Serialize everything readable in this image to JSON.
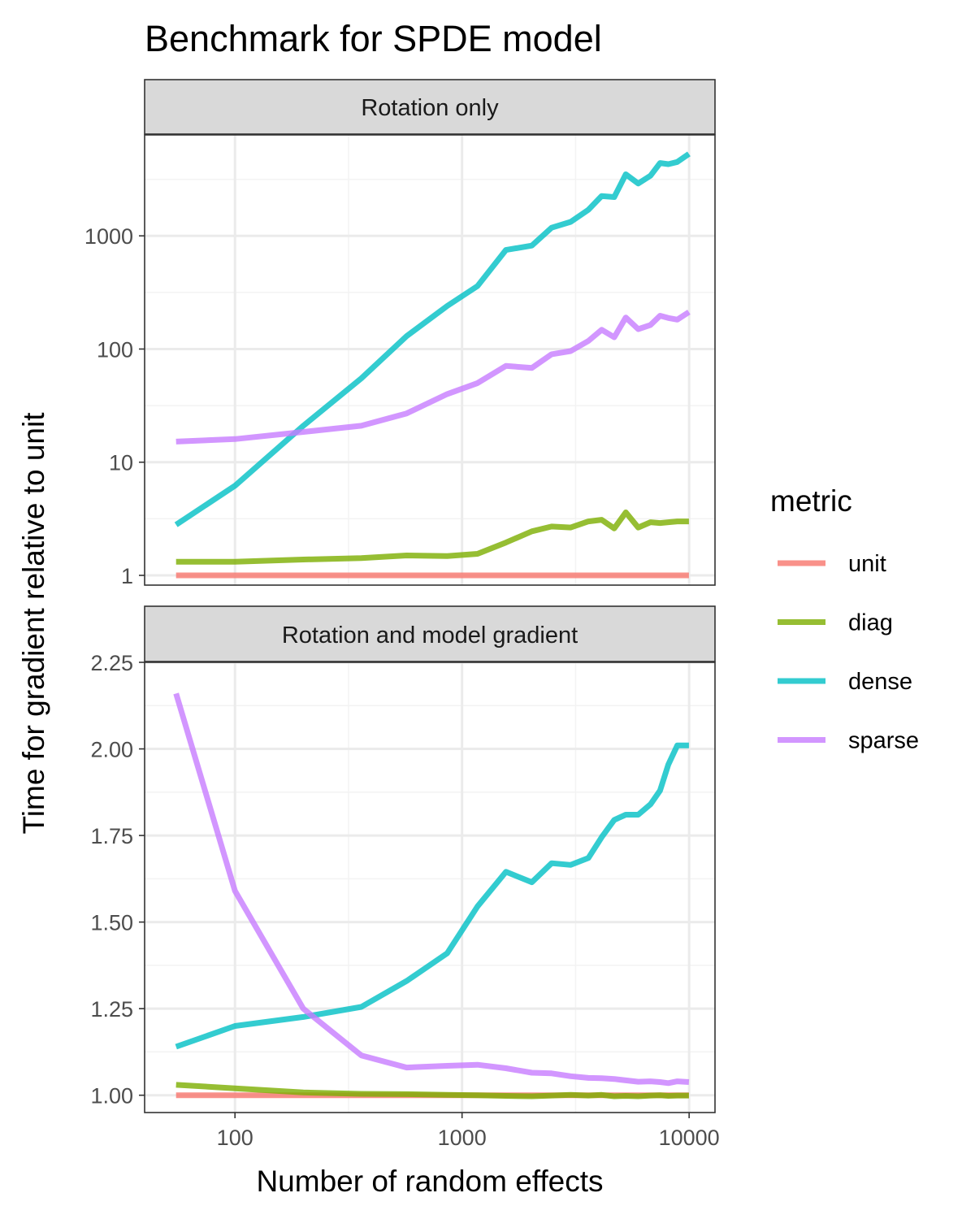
{
  "chart_data": {
    "type": "line",
    "title": "Benchmark for SPDE model",
    "xlabel": "Number of random effects",
    "ylabel": "Time for gradient relative to unit",
    "x_scale": "log10",
    "x_ticks": [
      100,
      1000,
      10000
    ],
    "x_tick_labels": [
      "100",
      "1000",
      "10000"
    ],
    "xlim": [
      40,
      13000
    ],
    "grid": true,
    "legend": {
      "title": "metric",
      "position": "right",
      "entries": [
        "unit",
        "diag",
        "dense",
        "sparse"
      ]
    },
    "colors": {
      "unit": "#F8766D",
      "diag": "#7CAE00",
      "dense": "#00BFC4",
      "sparse": "#C77CFF"
    },
    "x": [
      55,
      100,
      200,
      360,
      570,
      860,
      1170,
      1560,
      2030,
      2480,
      3010,
      3600,
      4120,
      4680,
      5260,
      5970,
      6760,
      7450,
      8100,
      8870,
      9980
    ],
    "panels": [
      {
        "strip": "Rotation only",
        "y_scale": "log10",
        "y_ticks": [
          1,
          10,
          100,
          1000
        ],
        "y_tick_labels": [
          "1",
          "10",
          "100",
          "1000"
        ],
        "ylim": [
          0.82,
          7800
        ],
        "series": [
          {
            "name": "unit",
            "values": [
              1,
              1,
              1,
              1,
              1,
              1,
              1,
              1,
              1,
              1,
              1,
              1,
              1,
              1,
              1,
              1,
              1,
              1,
              1,
              1,
              1
            ]
          },
          {
            "name": "diag",
            "values": [
              1.32,
              1.32,
              1.38,
              1.42,
              1.5,
              1.48,
              1.55,
              1.95,
              2.45,
              2.7,
              2.65,
              3.0,
              3.1,
              2.6,
              3.6,
              2.65,
              2.95,
              2.9,
              2.95,
              3.0,
              3.0
            ]
          },
          {
            "name": "dense",
            "values": [
              2.8,
              6.2,
              21,
              55,
              130,
              240,
              360,
              750,
              820,
              1180,
              1330,
              1700,
              2250,
              2200,
              3500,
              2900,
              3400,
              4400,
              4300,
              4500,
              5300
            ]
          },
          {
            "name": "sparse",
            "values": [
              15.2,
              16,
              18.5,
              21,
              27,
              40,
              50,
              71,
              68,
              90,
              96,
              118,
              148,
              127,
              190,
              150,
              163,
              197,
              188,
              182,
              212
            ]
          }
        ]
      },
      {
        "strip": "Rotation and model gradient",
        "y_scale": "linear",
        "y_ticks": [
          1.0,
          1.25,
          1.5,
          1.75,
          2.0,
          2.25
        ],
        "y_tick_labels": [
          "1.00",
          "1.25",
          "1.50",
          "1.75",
          "2.00",
          "2.25"
        ],
        "ylim": [
          0.95,
          2.25
        ],
        "series": [
          {
            "name": "unit",
            "values": [
              1,
              1,
              1,
              1,
              1,
              1,
              1,
              1,
              1,
              1,
              1,
              1,
              1,
              1,
              1,
              1,
              1,
              1,
              1,
              1,
              1
            ]
          },
          {
            "name": "diag",
            "values": [
              1.03,
              1.02,
              1.008,
              1.004,
              1.003,
              1.001,
              1.0,
              0.998,
              0.997,
              0.999,
              1.001,
              0.999,
              1.001,
              0.997,
              0.998,
              0.997,
              0.999,
              1.0,
              0.998,
              0.999,
              0.999
            ]
          },
          {
            "name": "dense",
            "values": [
              1.14,
              1.2,
              1.226,
              1.255,
              1.33,
              1.41,
              1.545,
              1.645,
              1.615,
              1.67,
              1.665,
              1.685,
              1.745,
              1.795,
              1.81,
              1.81,
              1.84,
              1.88,
              1.955,
              2.01,
              2.01
            ]
          },
          {
            "name": "sparse",
            "values": [
              2.16,
              1.59,
              1.25,
              1.115,
              1.08,
              1.085,
              1.088,
              1.078,
              1.065,
              1.063,
              1.055,
              1.05,
              1.049,
              1.047,
              1.043,
              1.039,
              1.04,
              1.038,
              1.035,
              1.04,
              1.038
            ]
          }
        ]
      }
    ]
  }
}
